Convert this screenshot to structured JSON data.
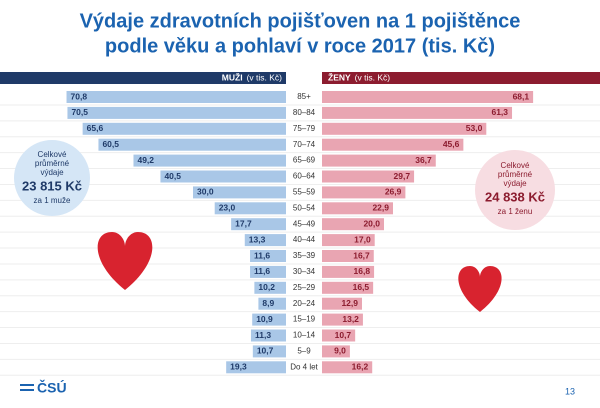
{
  "title": [
    "Výdaje zdravotních pojišťoven na 1 pojištěnce",
    "podle věku a pohlaví v roce 2017 (tis. Kč)"
  ],
  "chart_data": {
    "type": "pyramid",
    "categories": [
      "85+",
      "80–84",
      "75–79",
      "70–74",
      "65–69",
      "60–64",
      "55–59",
      "50–54",
      "45–49",
      "40–44",
      "35–39",
      "30–34",
      "25–29",
      "20–24",
      "15–19",
      "10–14",
      "5–9",
      "Do 4 let"
    ],
    "series": [
      {
        "name": "MUŽI",
        "unit_label": "(v tis. Kč)",
        "color": "#a9c7e7",
        "header_color": "#1f3a68",
        "label_color": "#1f3a68",
        "values": [
          70.8,
          70.5,
          65.6,
          60.5,
          49.2,
          40.5,
          30.0,
          23.0,
          17.7,
          13.3,
          11.6,
          11.6,
          10.2,
          8.9,
          10.9,
          11.3,
          10.7,
          19.3
        ],
        "value_labels": [
          "70,8",
          "70,5",
          "65,6",
          "60,5",
          "49,2",
          "40,5",
          "30,0",
          "23,0",
          "17,7",
          "13,3",
          "11,6",
          "11,6",
          "10,2",
          "8,9",
          "10,9",
          "11,3",
          "10,7",
          "19,3"
        ]
      },
      {
        "name": "ŽENY",
        "unit_label": "(v tis. Kč)",
        "color": "#e9a5b2",
        "header_color": "#8c1c2f",
        "label_color": "#8c1c2f",
        "values": [
          68.1,
          61.3,
          53.0,
          45.6,
          36.7,
          29.7,
          26.9,
          22.9,
          20.0,
          17.0,
          16.7,
          16.8,
          16.5,
          12.9,
          13.2,
          10.7,
          9.0,
          16.2
        ],
        "value_labels": [
          "68,1",
          "61,3",
          "53,0",
          "45,6",
          "36,7",
          "29,7",
          "26,9",
          "22,9",
          "20,0",
          "17,0",
          "16,7",
          "16,8",
          "16,5",
          "12,9",
          "13,2",
          "10,7",
          "9,0",
          "16,2"
        ]
      }
    ]
  },
  "callouts": {
    "men": {
      "lines": [
        "Celkové",
        "průměrné",
        "výdaje"
      ],
      "amount": "23 815 Kč",
      "note": "za 1 muže"
    },
    "women": {
      "lines": [
        "Celkové",
        "průměrné",
        "výdaje"
      ],
      "amount": "24 838 Kč",
      "note": "za 1 ženu"
    }
  },
  "logo": "ČSÚ",
  "page_number": 13
}
